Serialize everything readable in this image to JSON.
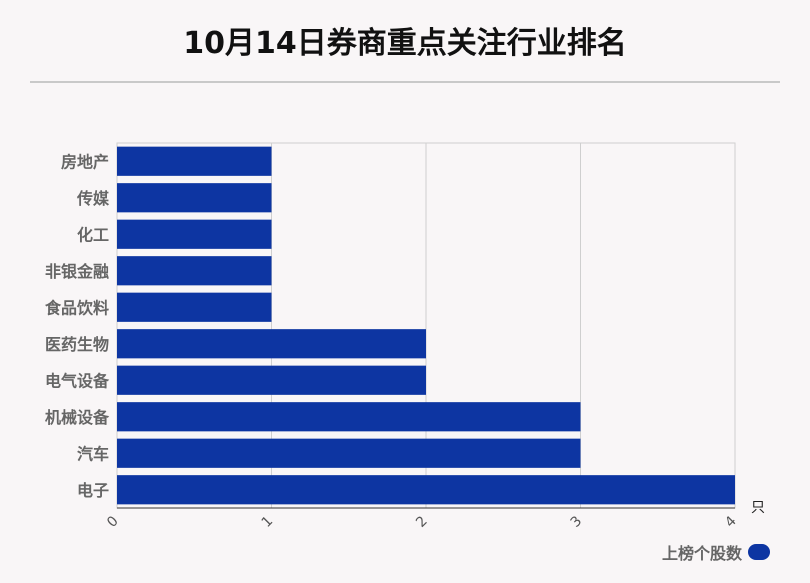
{
  "title": "10月14日券商重点关注行业排名",
  "chart_data": {
    "type": "bar",
    "orientation": "horizontal",
    "categories": [
      "房地产",
      "传媒",
      "化工",
      "非银金融",
      "食品饮料",
      "医药生物",
      "电气设备",
      "机械设备",
      "汽车",
      "电子"
    ],
    "series": [
      {
        "name": "上榜个股数",
        "values": [
          1,
          1,
          1,
          1,
          1,
          2,
          2,
          3,
          3,
          4
        ]
      }
    ],
    "xlim": [
      0,
      4
    ],
    "xticks": [
      "0",
      "1",
      "2",
      "3",
      "4"
    ],
    "x_unit": "只",
    "grid": true,
    "legend_position": "bottom-right",
    "bar_color": "#0d35a2"
  }
}
